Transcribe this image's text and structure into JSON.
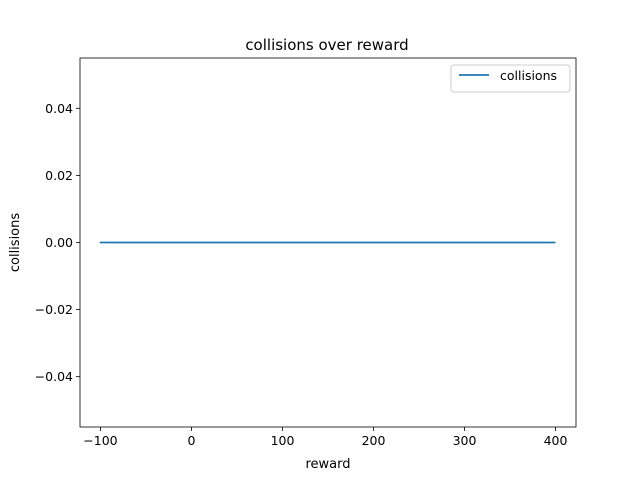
{
  "chart_data": {
    "type": "line",
    "title": "collisions over reward",
    "xlabel": "reward",
    "ylabel": "collisions",
    "xlim": [
      -122.5,
      422.5
    ],
    "ylim": [
      -0.055,
      0.055
    ],
    "xticks": [
      -100,
      0,
      100,
      200,
      300,
      400
    ],
    "yticks": [
      -0.04,
      -0.02,
      0.0,
      0.02,
      0.04
    ],
    "xtick_labels": [
      "−100",
      "0",
      "100",
      "200",
      "300",
      "400"
    ],
    "ytick_labels": [
      "−0.04",
      "−0.02",
      "0.00",
      "0.02",
      "0.04"
    ],
    "grid": false,
    "legend_position": "upper right",
    "series": [
      {
        "name": "collisions",
        "color": "#1f77b4",
        "x": [
          -100,
          -50,
          0,
          -100,
          400
        ],
        "y": [
          0,
          0,
          0,
          0,
          0
        ]
      }
    ]
  }
}
